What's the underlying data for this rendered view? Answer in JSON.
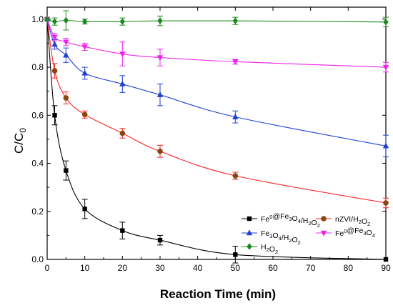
{
  "chart_data": {
    "type": "line",
    "title": "",
    "xlabel": "Reaction Time (min)",
    "ylabel": "C/C",
    "ylabel_sub": "0",
    "xlim": [
      0,
      90
    ],
    "ylim": [
      0,
      1.05
    ],
    "x_ticks": [
      0,
      10,
      20,
      30,
      40,
      50,
      60,
      70,
      80,
      90
    ],
    "y_ticks": [
      0.0,
      0.2,
      0.4,
      0.6,
      0.8,
      1.0
    ],
    "x_tick_labels": [
      "0",
      "10",
      "20",
      "30",
      "40",
      "50",
      "60",
      "70",
      "80",
      "90"
    ],
    "y_tick_labels": [
      "0.0",
      "0.2",
      "0.4",
      "0.6",
      "0.8",
      "1.0"
    ],
    "grid": false,
    "legend_position": "bottom-right",
    "series": [
      {
        "name": "Fe0@Fe3O4/H2O2",
        "legend_parts": [
          [
            "Fe",
            ""
          ],
          [
            "0",
            "sup"
          ],
          [
            "@Fe",
            ""
          ],
          [
            "3",
            "sub"
          ],
          [
            "O",
            ""
          ],
          [
            "4",
            "sub"
          ],
          [
            "/H",
            ""
          ],
          [
            "2",
            "sub"
          ],
          [
            "O",
            ""
          ],
          [
            "2",
            "sub"
          ]
        ],
        "color": "#000000",
        "marker": "square",
        "x": [
          0,
          2,
          5,
          10,
          20,
          30,
          50,
          90
        ],
        "values": [
          1.0,
          0.6,
          0.37,
          0.21,
          0.12,
          0.08,
          0.02,
          0.0
        ],
        "errors": [
          0.0,
          0.04,
          0.04,
          0.04,
          0.035,
          0.02,
          0.035,
          0.0
        ]
      },
      {
        "name": "nZVI/H2O2",
        "legend_parts": [
          [
            "nZVI/H",
            ""
          ],
          [
            "2",
            "sub"
          ],
          [
            "O",
            ""
          ],
          [
            "2",
            "sub"
          ]
        ],
        "color": "#ff2222",
        "marker_color": "#8b4513",
        "marker": "circle",
        "x": [
          0,
          2,
          5,
          10,
          20,
          30,
          50,
          90
        ],
        "values": [
          1.0,
          0.785,
          0.672,
          0.603,
          0.525,
          0.45,
          0.348,
          0.235
        ],
        "errors": [
          0.0,
          0.03,
          0.025,
          0.015,
          0.02,
          0.025,
          0.015,
          0.02
        ]
      },
      {
        "name": "Fe3O4/H2O2",
        "legend_parts": [
          [
            "Fe",
            ""
          ],
          [
            "3",
            "sub"
          ],
          [
            "O",
            ""
          ],
          [
            "4",
            "sub"
          ],
          [
            "/H",
            ""
          ],
          [
            "2",
            "sub"
          ],
          [
            "O",
            ""
          ],
          [
            "2",
            "sub"
          ]
        ],
        "color": "#1f3fd0",
        "marker": "triangle-up",
        "x": [
          0,
          2,
          5,
          10,
          20,
          30,
          50,
          90
        ],
        "values": [
          1.0,
          0.895,
          0.85,
          0.775,
          0.73,
          0.685,
          0.593,
          0.472
        ],
        "errors": [
          0.0,
          0.02,
          0.03,
          0.025,
          0.035,
          0.045,
          0.025,
          0.045
        ]
      },
      {
        "name": "Fe0@Fe3O4",
        "legend_parts": [
          [
            "Fe",
            ""
          ],
          [
            "0",
            "sup"
          ],
          [
            "@Fe",
            ""
          ],
          [
            "3",
            "sub"
          ],
          [
            "O",
            ""
          ],
          [
            "4",
            "sub"
          ]
        ],
        "color": "#ee22ee",
        "marker": "triangle-down",
        "x": [
          0,
          2,
          5,
          10,
          20,
          30,
          50,
          90
        ],
        "values": [
          1.0,
          0.925,
          0.905,
          0.885,
          0.855,
          0.84,
          0.823,
          0.8
        ],
        "errors": [
          0.0,
          0.015,
          0.015,
          0.015,
          0.05,
          0.035,
          0.01,
          0.02
        ]
      },
      {
        "name": "H2O2",
        "legend_parts": [
          [
            "H",
            ""
          ],
          [
            "2",
            "sub"
          ],
          [
            "O",
            ""
          ],
          [
            "2",
            "sub"
          ]
        ],
        "color": "#1a8a1a",
        "marker": "diamond",
        "x": [
          0,
          2,
          5,
          10,
          20,
          30,
          50,
          90
        ],
        "values": [
          1.0,
          0.99,
          0.995,
          0.99,
          0.99,
          0.993,
          0.993,
          0.988
        ],
        "errors": [
          0.0,
          0.015,
          0.04,
          0.01,
          0.015,
          0.02,
          0.015,
          0.02
        ]
      }
    ]
  }
}
